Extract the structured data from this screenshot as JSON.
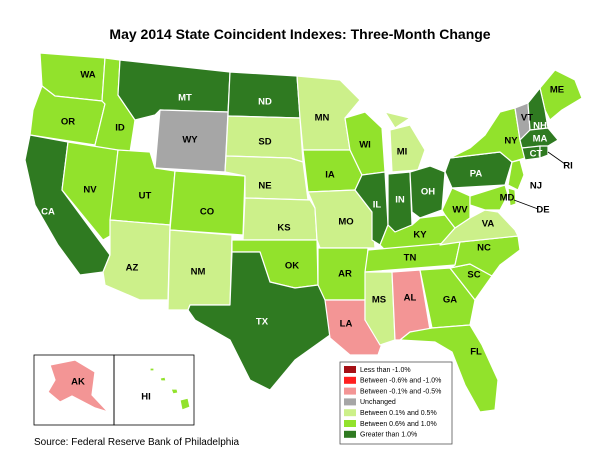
{
  "title": "May 2014 State Coincident Indexes: Three-Month Change",
  "source": "Source: Federal Reserve Bank of Philadelphia",
  "colors": {
    "lt_neg1": "#a50f15",
    "neg06_neg1": "#ff1f1f",
    "neg01_neg05": "#f39595",
    "unchanged": "#a6a6a6",
    "p01_05": "#ccf08a",
    "p06_10": "#92e22c",
    "gt1": "#2f7a21"
  },
  "legend": [
    {
      "key": "lt_neg1",
      "label": "Less than -1.0%"
    },
    {
      "key": "neg06_neg1",
      "label": "Between -0.6% and -1.0%"
    },
    {
      "key": "neg01_neg05",
      "label": "Between -0.1% and -0.5%"
    },
    {
      "key": "unchanged",
      "label": "Unchanged"
    },
    {
      "key": "p01_05",
      "label": "Between 0.1% and 0.5%"
    },
    {
      "key": "p06_10",
      "label": "Between 0.6% and 1.0%"
    },
    {
      "key": "gt1",
      "label": "Greater than 1.0%"
    }
  ],
  "states": {
    "WA": "p06_10",
    "OR": "p06_10",
    "CA": "gt1",
    "ID": "p06_10",
    "NV": "p06_10",
    "MT": "gt1",
    "WY": "unchanged",
    "UT": "p06_10",
    "AZ": "p01_05",
    "CO": "p06_10",
    "NM": "p01_05",
    "ND": "gt1",
    "SD": "p01_05",
    "NE": "p01_05",
    "KS": "p01_05",
    "OK": "p06_10",
    "TX": "gt1",
    "MN": "p01_05",
    "IA": "p06_10",
    "MO": "p01_05",
    "AR": "p06_10",
    "LA": "neg01_neg05",
    "WI": "p06_10",
    "IL": "gt1",
    "MI": "p01_05",
    "IN": "gt1",
    "OH": "gt1",
    "KY": "p06_10",
    "TN": "p06_10",
    "MS": "p01_05",
    "AL": "neg01_neg05",
    "GA": "p06_10",
    "FL": "p06_10",
    "SC": "p06_10",
    "NC": "p06_10",
    "VA": "p01_05",
    "WV": "p06_10",
    "PA": "gt1",
    "NY": "p06_10",
    "ME": "p06_10",
    "VT": "unchanged",
    "NH": "gt1",
    "MA": "gt1",
    "CT": "gt1",
    "RI": "gt1",
    "NJ": "p06_10",
    "DE": "p06_10",
    "MD": "p06_10",
    "AK": "neg01_neg05",
    "HI": "p06_10"
  }
}
